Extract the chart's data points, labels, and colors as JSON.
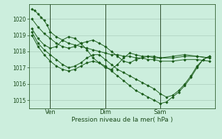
{
  "bg_color": "#cceedd",
  "grid_color": "#aaccbb",
  "line_color": "#1a5c1a",
  "marker_color": "#1a5c1a",
  "xlabel": "Pression niveau de la mer( hPa )",
  "ylim": [
    1014.5,
    1020.9
  ],
  "yticks": [
    1015,
    1016,
    1017,
    1018,
    1019,
    1020
  ],
  "xtick_labels": [
    "Ven",
    "Dim",
    "Sam"
  ],
  "xtick_positions": [
    12,
    48,
    84
  ],
  "vline_positions": [
    12,
    48,
    84
  ],
  "xlim": [
    -2,
    120
  ],
  "series": [
    {
      "x": [
        0,
        2,
        4,
        6,
        8,
        10,
        12,
        16,
        20,
        24,
        28,
        32,
        36,
        40,
        44,
        48,
        52,
        56,
        60,
        64,
        68,
        72,
        76,
        80,
        84,
        92,
        100,
        108,
        116
      ],
      "y": [
        1020.6,
        1020.5,
        1020.3,
        1020.1,
        1019.9,
        1019.6,
        1019.2,
        1018.9,
        1018.7,
        1018.5,
        1018.4,
        1018.3,
        1018.2,
        1018.1,
        1018.0,
        1017.9,
        1017.8,
        1017.8,
        1017.7,
        1017.7,
        1017.6,
        1017.6,
        1017.5,
        1017.5,
        1017.4,
        1017.4,
        1017.5,
        1017.5,
        1017.4
      ]
    },
    {
      "x": [
        0,
        4,
        8,
        12,
        16,
        20,
        24,
        28,
        32,
        36,
        40,
        44,
        48,
        52,
        56,
        60,
        64,
        68,
        72,
        76,
        80,
        84,
        92,
        100,
        108,
        116
      ],
      "y": [
        1020.0,
        1019.5,
        1019.1,
        1018.8,
        1018.5,
        1018.3,
        1018.2,
        1018.3,
        1018.5,
        1018.6,
        1018.7,
        1018.5,
        1018.3,
        1018.0,
        1017.7,
        1017.4,
        1017.3,
        1017.5,
        1017.6,
        1017.7,
        1017.7,
        1017.6,
        1017.7,
        1017.8,
        1017.7,
        1017.6
      ]
    },
    {
      "x": [
        0,
        4,
        8,
        12,
        16,
        20,
        24,
        28,
        32,
        36,
        40,
        44,
        48,
        52,
        56,
        60,
        64,
        68,
        72,
        76,
        80,
        84,
        92,
        100,
        108,
        116
      ],
      "y": [
        1019.4,
        1018.8,
        1018.4,
        1018.2,
        1018.3,
        1018.7,
        1018.9,
        1018.8,
        1018.5,
        1018.1,
        1017.6,
        1017.3,
        1017.0,
        1016.9,
        1017.2,
        1017.6,
        1017.9,
        1017.8,
        1017.7,
        1017.7,
        1017.6,
        1017.6,
        1017.6,
        1017.7,
        1017.7,
        1017.6
      ]
    },
    {
      "x": [
        0,
        4,
        8,
        12,
        16,
        20,
        24,
        28,
        32,
        36,
        40,
        44,
        48,
        52,
        56,
        60,
        64,
        68,
        72,
        76,
        80,
        84,
        88,
        92,
        96,
        100,
        104,
        108,
        112,
        116
      ],
      "y": [
        1019.2,
        1018.5,
        1018.1,
        1017.8,
        1017.5,
        1017.2,
        1017.0,
        1017.1,
        1017.3,
        1017.6,
        1017.8,
        1017.8,
        1017.5,
        1017.2,
        1016.9,
        1016.7,
        1016.5,
        1016.3,
        1016.1,
        1015.9,
        1015.7,
        1015.4,
        1015.2,
        1015.3,
        1015.6,
        1016.0,
        1016.5,
        1017.1,
        1017.5,
        1017.7
      ]
    },
    {
      "x": [
        0,
        4,
        8,
        12,
        16,
        20,
        24,
        28,
        32,
        36,
        40,
        44,
        48,
        52,
        56,
        60,
        64,
        68,
        72,
        76,
        80,
        84,
        88,
        92,
        96,
        100,
        104,
        108,
        112,
        116
      ],
      "y": [
        1019.0,
        1018.3,
        1017.8,
        1017.4,
        1017.1,
        1016.9,
        1016.8,
        1016.9,
        1017.1,
        1017.3,
        1017.4,
        1017.3,
        1017.1,
        1016.8,
        1016.5,
        1016.2,
        1015.9,
        1015.6,
        1015.4,
        1015.2,
        1015.0,
        1014.8,
        1014.9,
        1015.2,
        1015.5,
        1015.9,
        1016.4,
        1017.0,
        1017.5,
        1017.7
      ]
    }
  ]
}
